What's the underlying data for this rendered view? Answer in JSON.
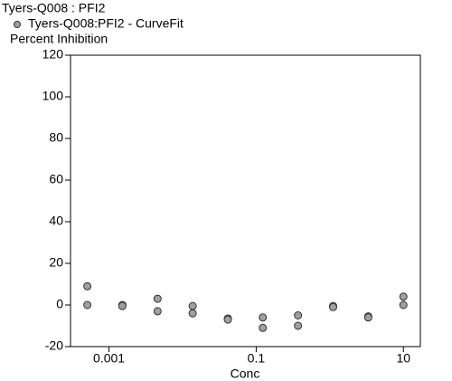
{
  "chart_data": {
    "type": "scatter",
    "title": "Tyers-Q008  : PFI2",
    "y_label": "Percent Inhibition",
    "x_label": "Conc",
    "xscale": "log",
    "xlim": [
      0.0003,
      17
    ],
    "ylim": [
      -20,
      120
    ],
    "xticks": [
      0.001,
      0.1,
      10
    ],
    "yticks": [
      -20,
      0,
      20,
      40,
      60,
      80,
      100,
      120
    ],
    "series": [
      {
        "name": "Tyers-Q008:PFI2 - CurveFit",
        "color": "#a0a0a0",
        "x": [
          0.000508,
          0.000508,
          0.00152,
          0.00152,
          0.00457,
          0.00457,
          0.0137,
          0.0137,
          0.0412,
          0.0412,
          0.123,
          0.123,
          0.37,
          0.37,
          1.11,
          1.11,
          3.33,
          3.33,
          10,
          10
        ],
        "values": [
          9,
          0,
          0,
          -0.5,
          3,
          -3,
          -0.5,
          -4,
          -6.5,
          -7,
          -6,
          -11,
          -5,
          -10,
          -0.5,
          -1,
          -5.5,
          -6,
          4,
          0
        ]
      }
    ]
  }
}
